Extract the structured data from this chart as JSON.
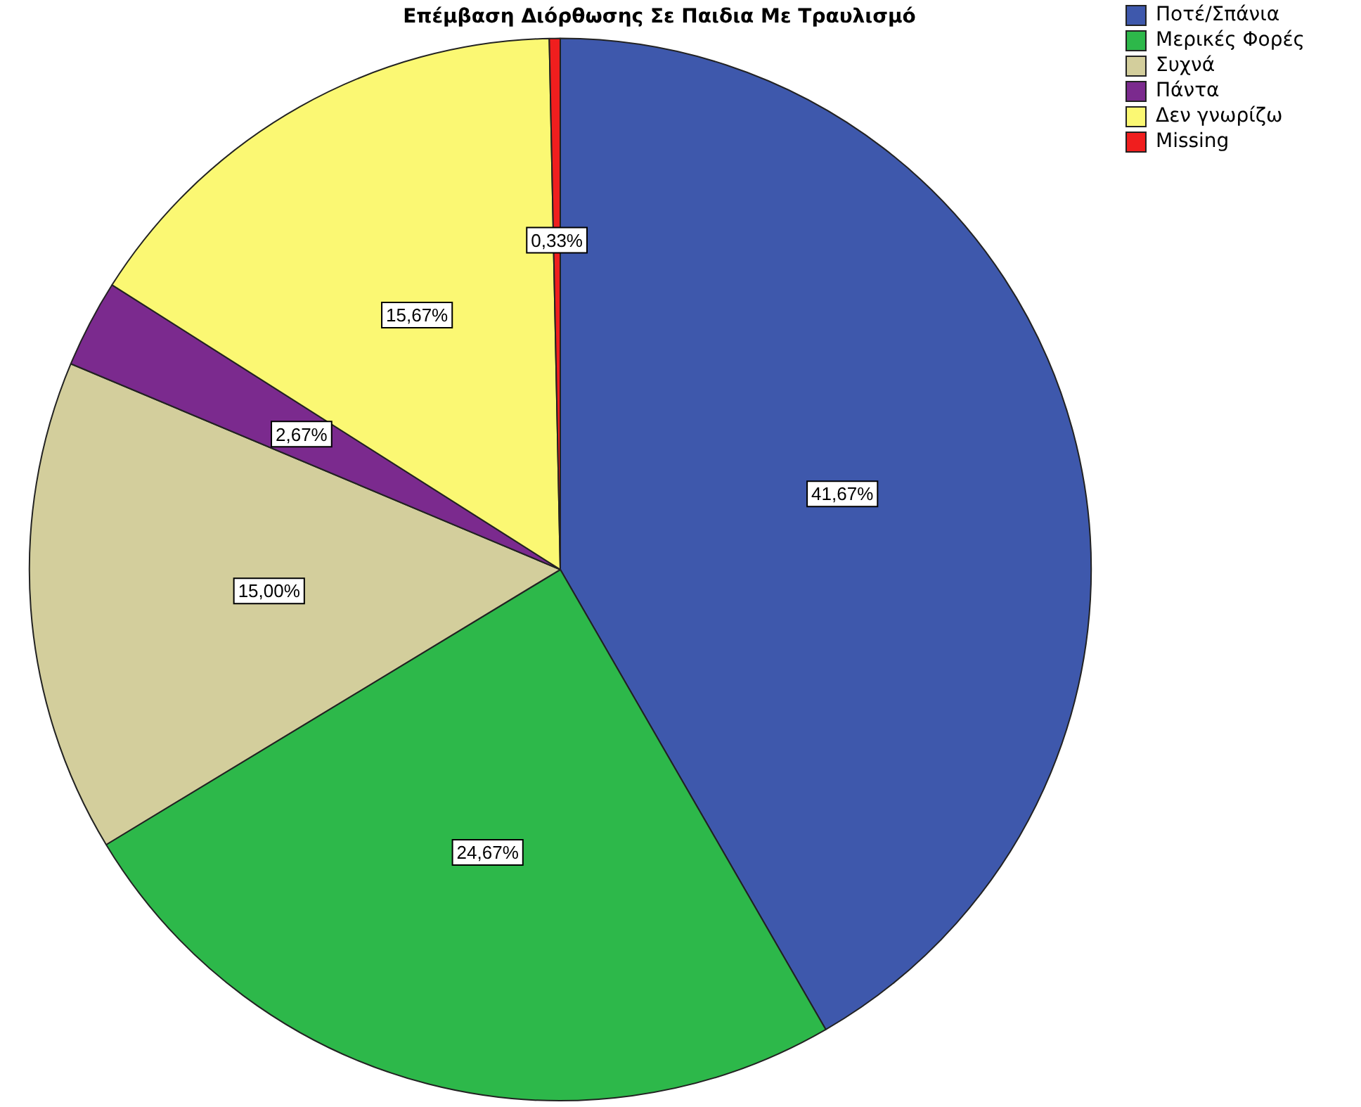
{
  "chart_data": {
    "type": "pie",
    "title": "Επέμβαση Διόρθωσης Σε Παιδια Με Τραυλισμό",
    "categories": [
      "Ποτέ/Σπάνια",
      "Μερικές Φορές",
      "Συχνά",
      "Πάντα",
      "Δεν γνωρίζω",
      "Missing"
    ],
    "values": [
      41.67,
      24.67,
      15.0,
      2.67,
      15.67,
      0.33
    ],
    "value_labels": [
      "41,67%",
      "24,67%",
      "15,00%",
      "2,67%",
      "15,67%",
      "0,33%"
    ],
    "colors": [
      "#3e58ac",
      "#2db84a",
      "#d3ce9c",
      "#7b2a8e",
      "#fbf873",
      "#f01e1e"
    ],
    "legend": "top right"
  }
}
